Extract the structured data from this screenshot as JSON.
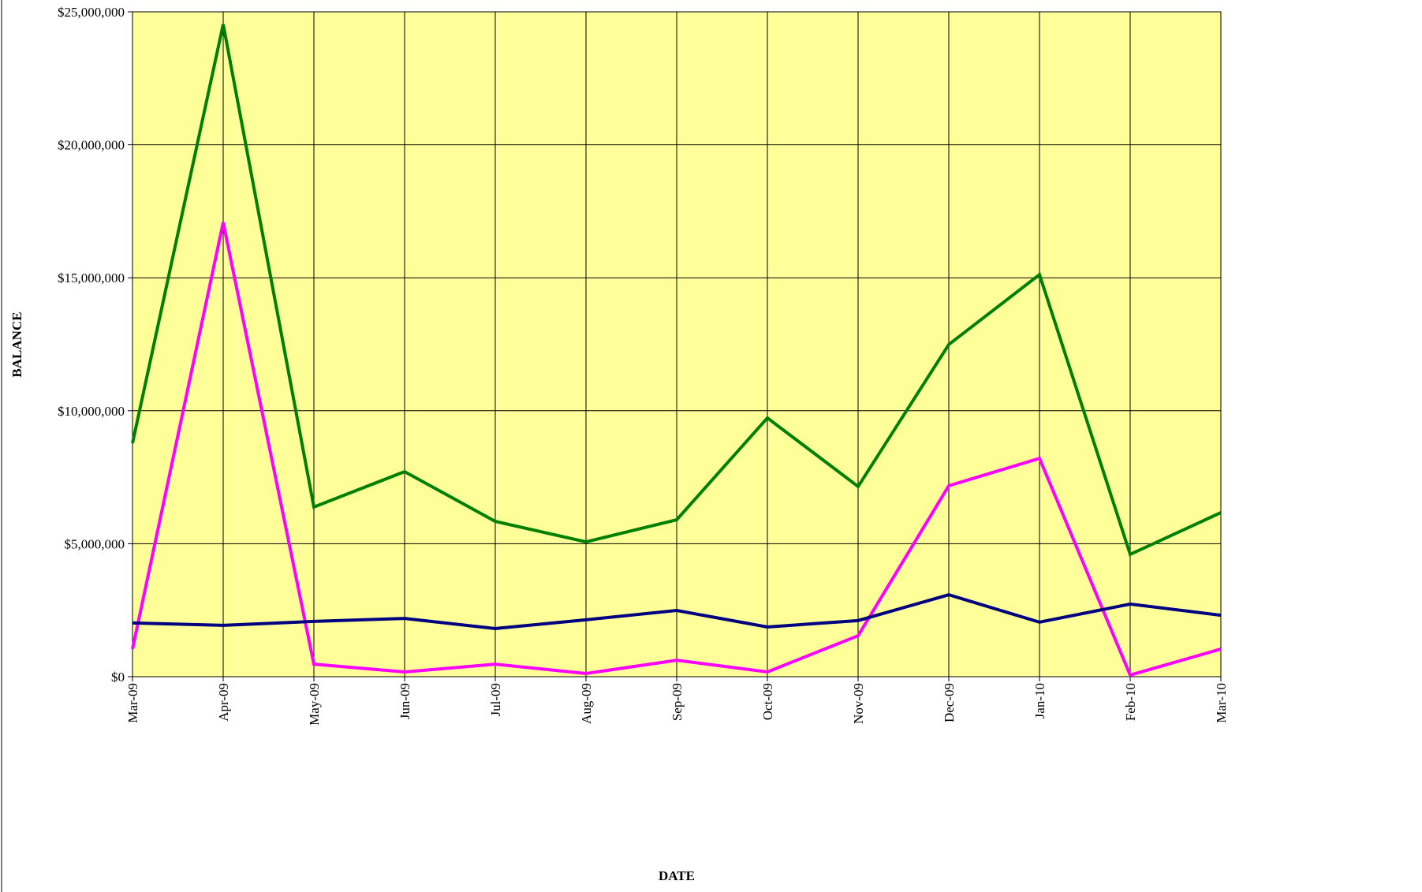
{
  "chart_data": {
    "type": "line",
    "x_label": "DATE",
    "y_label": "BALANCE",
    "categories": [
      "Mar-09",
      "Apr-09",
      "May-09",
      "Jun-09",
      "Jul-09",
      "Aug-09",
      "Sep-09",
      "Oct-09",
      "Nov-09",
      "Dec-09",
      "Jan-10",
      "Feb-10",
      "Mar-10"
    ],
    "series": [
      {
        "color": "#008000",
        "values": [
          8780000,
          24530000,
          6380000,
          7710000,
          5840000,
          5070000,
          5900000,
          9730000,
          7150000,
          12490000,
          15120000,
          4600000,
          6170000
        ]
      },
      {
        "color": "#ff00ff",
        "values": [
          1040000,
          17080000,
          470000,
          180000,
          470000,
          120000,
          620000,
          180000,
          1540000,
          7180000,
          8210000,
          60000,
          1040000
        ]
      },
      {
        "color": "#000080",
        "values": [
          2020000,
          1930000,
          2080000,
          2190000,
          1810000,
          2140000,
          2490000,
          1870000,
          2110000,
          3080000,
          2050000,
          2730000,
          2310000
        ]
      }
    ],
    "ylim": [
      0,
      25000000
    ],
    "yticks": [
      {
        "value": 0,
        "label": "$0"
      },
      {
        "value": 5000000,
        "label": "$5,000,000"
      },
      {
        "value": 10000000,
        "label": "$10,000,000"
      },
      {
        "value": 15000000,
        "label": "$15,000,000"
      },
      {
        "value": 20000000,
        "label": "$20,000,000"
      },
      {
        "value": 25000000,
        "label": "$25,000,000"
      }
    ],
    "grid": true,
    "plot_background": "#ffff99"
  }
}
